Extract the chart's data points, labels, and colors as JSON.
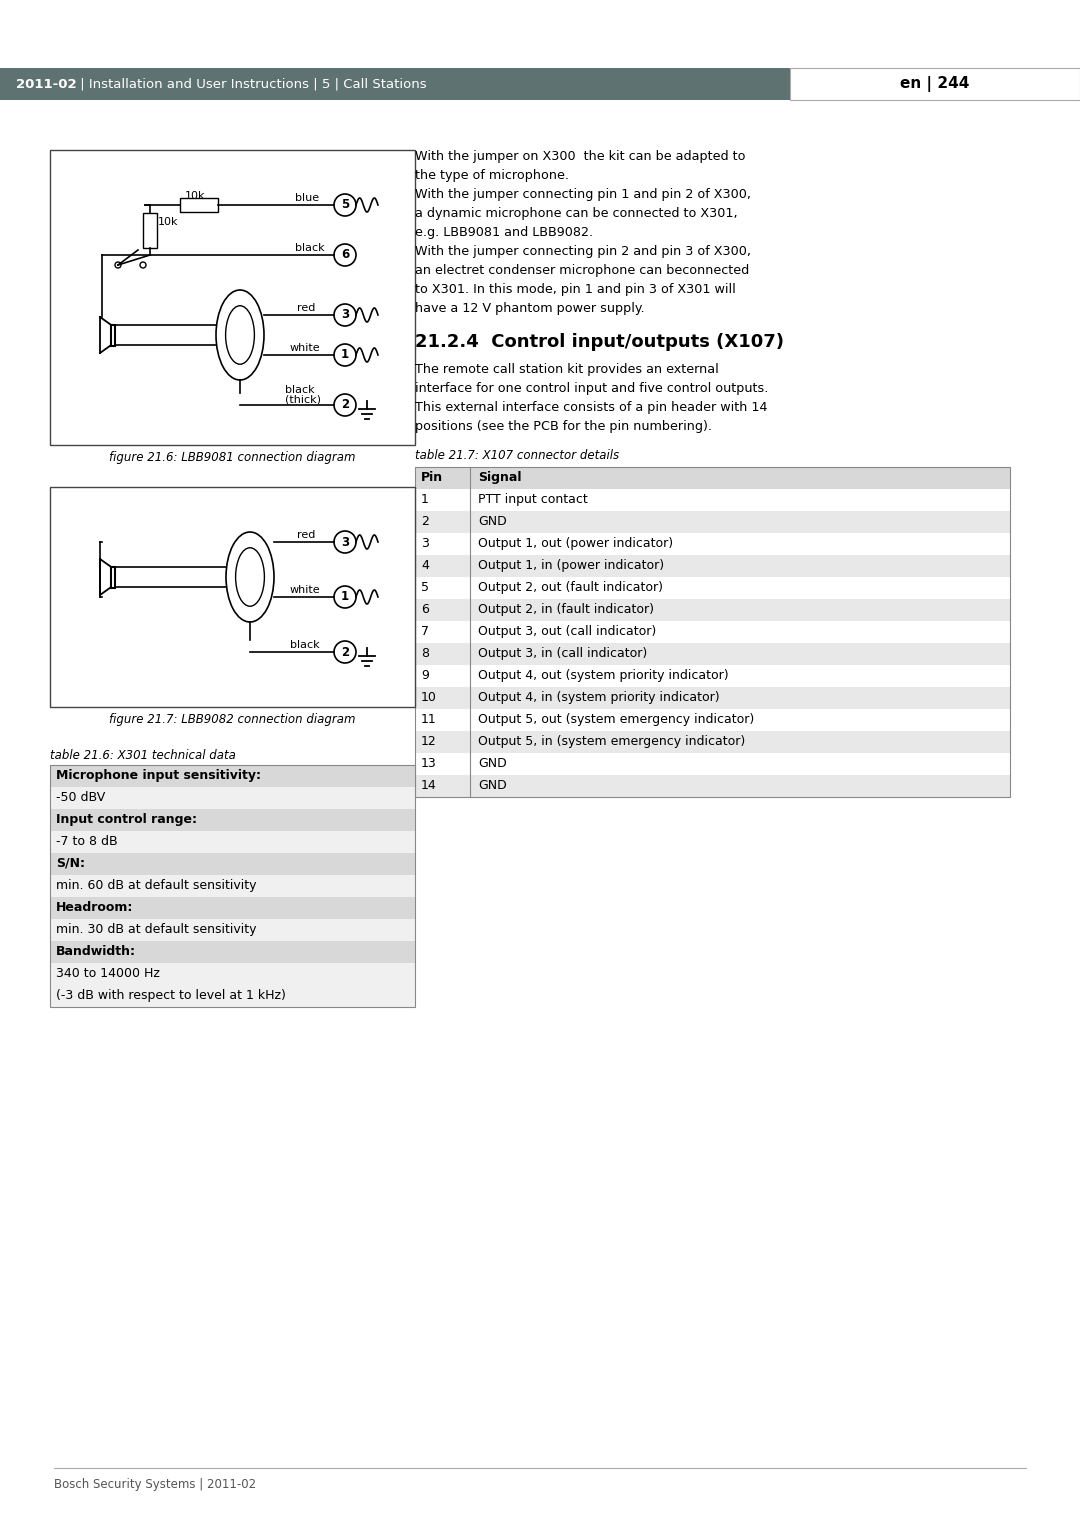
{
  "header_bg": "#5f7272",
  "header_text_color": "#ffffff",
  "header_left_bold": "2011-02",
  "header_left_rest": " | Installation and User Instructions | 5 | Call Stations",
  "header_right": "en | 244",
  "footer_text": "Bosch Security Systems | 2011-02",
  "page_bg": "#ffffff",
  "fig1_caption": "figure 21.6: LBB9081 connection diagram",
  "fig2_caption": "figure 21.7: LBB9082 connection diagram",
  "table1_title": "table 21.6: X301 technical data",
  "table1_rows": [
    [
      "bold",
      "Microphone input sensitivity:"
    ],
    [
      "normal",
      "-50 dBV"
    ],
    [
      "bold",
      "Input control range:"
    ],
    [
      "normal",
      "-7 to 8 dB"
    ],
    [
      "bold",
      "S/N:"
    ],
    [
      "normal",
      "min. 60 dB at default sensitivity"
    ],
    [
      "bold",
      "Headroom:"
    ],
    [
      "normal",
      "min. 30 dB at default sensitivity"
    ],
    [
      "bold",
      "Bandwidth:"
    ],
    [
      "normal",
      "340 to 14000 Hz"
    ],
    [
      "normal",
      "(-3 dB with respect to level at 1 kHz)"
    ]
  ],
  "table1_row_colors": [
    "#d8d8d8",
    "#f0f0f0",
    "#d8d8d8",
    "#f0f0f0",
    "#d8d8d8",
    "#f0f0f0",
    "#d8d8d8",
    "#f0f0f0",
    "#d8d8d8",
    "#f0f0f0",
    "#f0f0f0"
  ],
  "section_title": "21.2.4  Control input/outputs (X107)",
  "section_text_lines": [
    "The remote call station kit provides an external",
    "interface for one control input and five control outputs.",
    "This external interface consists of a pin header with 14",
    "positions (see the PCB for the pin numbering)."
  ],
  "right_text_lines": [
    "With the jumper on X300  the kit can be adapted to",
    "the type of microphone.",
    "With the jumper connecting pin 1 and pin 2 of X300,",
    "a dynamic microphone can be connected to X301,",
    "e.g. LBB9081 and LBB9082.",
    "With the jumper connecting pin 2 and pin 3 of X300,",
    "an electret condenser microphone can beconnected",
    "to X301. In this mode, pin 1 and pin 3 of X301 will",
    "have a 12 V phantom power supply."
  ],
  "table2_title": "table 21.7: X107 connector details",
  "table2_headers": [
    "Pin",
    "Signal"
  ],
  "table2_rows": [
    [
      "1",
      "PTT input contact"
    ],
    [
      "2",
      "GND"
    ],
    [
      "3",
      "Output 1, out (power indicator)"
    ],
    [
      "4",
      "Output 1, in (power indicator)"
    ],
    [
      "5",
      "Output 2, out (fault indicator)"
    ],
    [
      "6",
      "Output 2, in (fault indicator)"
    ],
    [
      "7",
      "Output 3, out (call indicator)"
    ],
    [
      "8",
      "Output 3, in (call indicator)"
    ],
    [
      "9",
      "Output 4, out (system priority indicator)"
    ],
    [
      "10",
      "Output 4, in (system priority indicator)"
    ],
    [
      "11",
      "Output 5, out (system emergency indicator)"
    ],
    [
      "12",
      "Output 5, in (system emergency indicator)"
    ],
    [
      "13",
      "GND"
    ],
    [
      "14",
      "GND"
    ]
  ],
  "table2_row_colors": [
    "#ffffff",
    "#e8e8e8",
    "#ffffff",
    "#e8e8e8",
    "#ffffff",
    "#e8e8e8",
    "#ffffff",
    "#e8e8e8",
    "#ffffff",
    "#e8e8e8",
    "#ffffff",
    "#e8e8e8",
    "#ffffff",
    "#e8e8e8"
  ]
}
